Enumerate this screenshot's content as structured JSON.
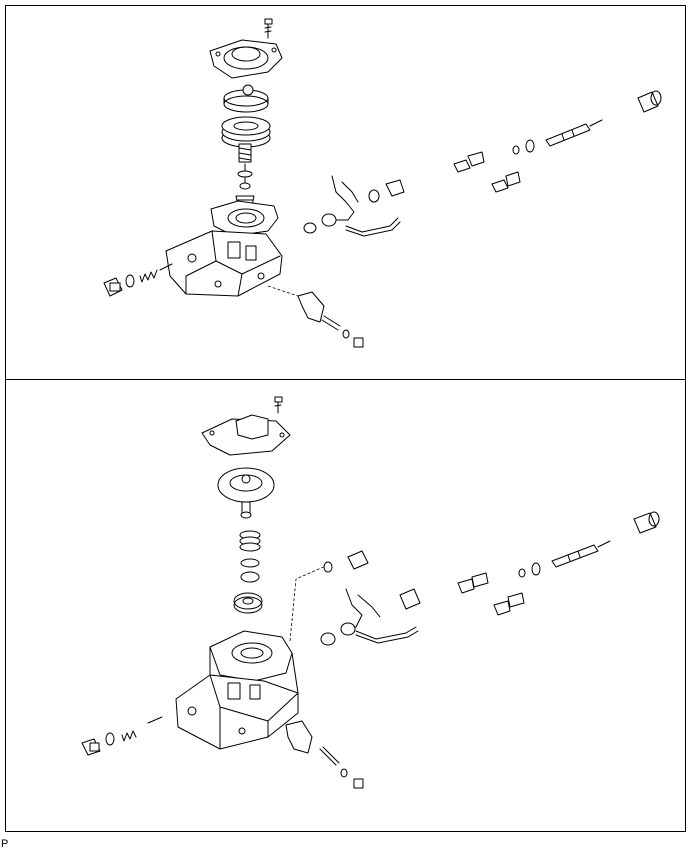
{
  "footer": {
    "code": "P"
  },
  "panels": [
    {
      "id": "top"
    },
    {
      "id": "bottom"
    }
  ]
}
